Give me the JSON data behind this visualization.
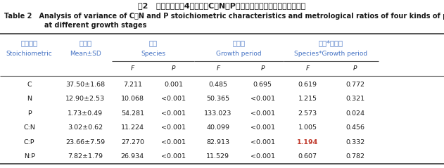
{
  "title_cn": "表2   不同生长期下4种植物的C、N、P化学计量特征及计量比的方差分析",
  "title_en_line1": "Table 2   Analysis of variance of C，N and P stoichiometric characteristics and metrological ratios of four kinds of plants",
  "title_en_line2": "at different growth stages",
  "header_cn_stoich": "化学计量",
  "header_en_stoich": "Stoichiometric",
  "header_cn_mean": "平均值",
  "header_en_mean": "Mean±SD",
  "header_cn_sp": "物种",
  "header_en_sp": "Species",
  "header_cn_gp": "生长期",
  "header_en_gp": "Growth period",
  "header_cn_sgp": "物种*生长期",
  "header_en_sgp": "Species*Growth period",
  "rows": [
    {
      "stoich": "C",
      "mean": "37.50±1.68",
      "sp_F": "7.211",
      "sp_P": "0.001",
      "gp_F": "0.485",
      "gp_P": "0.695",
      "sgp_F": "0.619",
      "sgp_P": "0.772",
      "highlight": false
    },
    {
      "stoich": "N",
      "mean": "12.90±2.53",
      "sp_F": "10.068",
      "sp_P": "<0.001",
      "gp_F": "50.365",
      "gp_P": "<0.001",
      "sgp_F": "1.215",
      "sgp_P": "0.321",
      "highlight": false
    },
    {
      "stoich": "P",
      "mean": "1.73±0.49",
      "sp_F": "54.281",
      "sp_P": "<0.001",
      "gp_F": "133.023",
      "gp_P": "<0.001",
      "sgp_F": "2.573",
      "sgp_P": "0.024",
      "highlight": false
    },
    {
      "stoich": "C:N",
      "mean": "3.02±0.62",
      "sp_F": "11.224",
      "sp_P": "<0.001",
      "gp_F": "40.099",
      "gp_P": "<0.001",
      "sgp_F": "1.005",
      "sgp_P": "0.456",
      "highlight": false
    },
    {
      "stoich": "C:P",
      "mean": "23.66±7.59",
      "sp_F": "27.270",
      "sp_P": "<0.001",
      "gp_F": "82.913",
      "gp_P": "<0.001",
      "sgp_F": "1.194",
      "sgp_P": "0.332",
      "highlight": true
    },
    {
      "stoich": "N:P",
      "mean": "7.82±1.79",
      "sp_F": "26.934",
      "sp_P": "<0.001",
      "gp_F": "11.529",
      "gp_P": "<0.001",
      "sgp_F": "0.607",
      "sgp_P": "0.782",
      "highlight": false
    }
  ],
  "highlight_color": "#c0392b",
  "bg_color": "#ffffff",
  "text_color": "#1a1a1a",
  "header_cn_color": "#4472c4",
  "header_en_color": "#4472c4",
  "title_cn_color": "#1a1a1a",
  "title_en_color": "#1a1a1a",
  "line_color": "#555555"
}
